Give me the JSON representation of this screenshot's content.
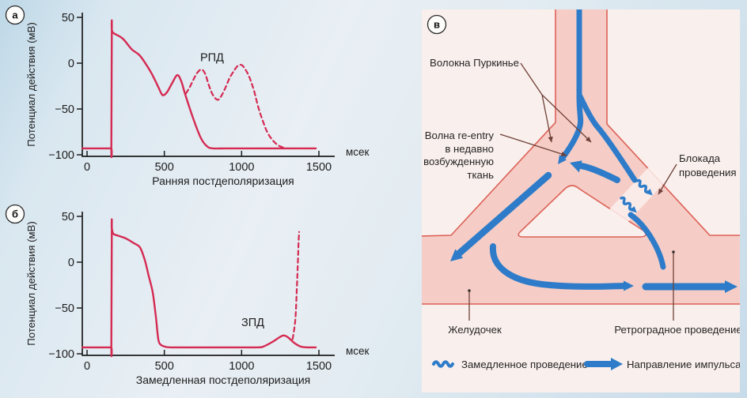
{
  "colors": {
    "curve_red": "#d52a52",
    "axis_ink": "#1c1c1c",
    "impulse_blue": "#2e7cc9",
    "tissue_pink": "#f6cdc6",
    "tissue_edge": "#dc6157",
    "panel_bg": "#f9efec",
    "pointer_brown": "#6f4038",
    "ink": "#262626"
  },
  "chart_data": [
    {
      "type": "line",
      "panel_letter": "а",
      "title": "Ранняя постдеполяризация",
      "ylabel": "Потенциал действия (мВ)",
      "x_unit": "мсек",
      "xlim": [
        0,
        1500
      ],
      "ylim": [
        -100,
        50
      ],
      "x_ticks": [
        0,
        500,
        1000,
        1500
      ],
      "y_ticks": [
        50,
        0,
        -50,
        -100
      ],
      "grid": false,
      "annotation": {
        "text": "РПД",
        "t": 732,
        "v": 2
      },
      "series": [
        {
          "name": "action-potential",
          "style": "solid",
          "points": [
            [
              -30,
              -93
            ],
            [
              60,
              -93
            ],
            [
              120,
              -93
            ],
            [
              157,
              -93
            ],
            [
              157,
              -93
            ],
            [
              160,
              37
            ],
            [
              160,
              37
            ],
            [
              170,
              33
            ],
            [
              230,
              27
            ],
            [
              290,
              15
            ],
            [
              343,
              8
            ],
            [
              410,
              -9
            ],
            [
              461,
              -26
            ],
            [
              480,
              -33
            ],
            [
              495,
              -35
            ],
            [
              520,
              -31
            ],
            [
              550,
              -22
            ],
            [
              584,
              -13
            ],
            [
              610,
              -20
            ],
            [
              635,
              -34
            ],
            [
              686,
              -60
            ],
            [
              737,
              -82
            ],
            [
              778,
              -91
            ],
            [
              815,
              -93
            ],
            [
              900,
              -93
            ],
            [
              1050,
              -93
            ],
            [
              1200,
              -93
            ],
            [
              1350,
              -93
            ],
            [
              1480,
              -93
            ]
          ]
        },
        {
          "name": "early-afterdepolarization",
          "style": "dashed",
          "points": [
            [
              640,
              -33
            ],
            [
              662,
              -27
            ],
            [
              688,
              -18
            ],
            [
              715,
              -10
            ],
            [
              742,
              -7
            ],
            [
              765,
              -12
            ],
            [
              790,
              -25
            ],
            [
              815,
              -35
            ],
            [
              845,
              -40
            ],
            [
              868,
              -36
            ],
            [
              895,
              -27
            ],
            [
              920,
              -17
            ],
            [
              948,
              -9
            ],
            [
              975,
              -3
            ],
            [
              1000,
              -2
            ],
            [
              1025,
              -7
            ],
            [
              1052,
              -16
            ],
            [
              1080,
              -30
            ],
            [
              1108,
              -48
            ],
            [
              1135,
              -62
            ],
            [
              1165,
              -75
            ],
            [
              1200,
              -84
            ],
            [
              1240,
              -90
            ],
            [
              1285,
              -93
            ]
          ]
        }
      ]
    },
    {
      "type": "line",
      "panel_letter": "б",
      "title": "Замедленная постдеполяризация",
      "ylabel": "Потенциал действия (мВ)",
      "x_unit": "мсек",
      "xlim": [
        0,
        1500
      ],
      "ylim": [
        -100,
        50
      ],
      "x_ticks": [
        0,
        500,
        1000,
        1500
      ],
      "y_ticks": [
        50,
        0,
        -50,
        -100
      ],
      "grid": false,
      "annotation": {
        "text": "ЗПД",
        "t": 998,
        "v": -70
      },
      "series": [
        {
          "name": "action-potential",
          "style": "solid",
          "points": [
            [
              -30,
              -93
            ],
            [
              60,
              -93
            ],
            [
              120,
              -93
            ],
            [
              157,
              -93
            ],
            [
              157,
              -93
            ],
            [
              160,
              37
            ],
            [
              160,
              37
            ],
            [
              170,
              31
            ],
            [
              200,
              29
            ],
            [
              250,
              26
            ],
            [
              300,
              21
            ],
            [
              343,
              16
            ],
            [
              374,
              2
            ],
            [
              399,
              -15
            ],
            [
              425,
              -33
            ],
            [
              445,
              -59
            ],
            [
              461,
              -84
            ],
            [
              476,
              -90
            ],
            [
              500,
              -92
            ],
            [
              540,
              -93
            ],
            [
              700,
              -93
            ],
            [
              900,
              -93
            ],
            [
              1100,
              -93
            ],
            [
              1142,
              -92
            ],
            [
              1200,
              -87
            ],
            [
              1245,
              -82
            ],
            [
              1272,
              -80
            ],
            [
              1300,
              -82
            ],
            [
              1340,
              -88
            ],
            [
              1380,
              -92
            ],
            [
              1423,
              -93
            ],
            [
              1480,
              -93
            ]
          ]
        },
        {
          "name": "delayed-afterdepolarization",
          "style": "dashed",
          "points": [
            [
              1330,
              -84
            ],
            [
              1348,
              -62
            ],
            [
              1358,
              -25
            ],
            [
              1364,
              0
            ],
            [
              1368,
              20
            ],
            [
              1372,
              33
            ]
          ]
        }
      ]
    }
  ],
  "diagram": {
    "panel_letter": "в",
    "labels": {
      "purkinje": "Волокна Пуркинье",
      "reentry_lines": [
        "Волна re-entry",
        "в недавно",
        "возбужденную",
        "ткань"
      ],
      "block_lines": [
        "Блокада",
        "проведения"
      ],
      "ventricle": "Желудочек",
      "retrograde": "Ретроградное проведение"
    },
    "legend": [
      {
        "icon": "squiggle-icon",
        "label": "Замедленное проведение"
      },
      {
        "icon": "arrow-icon",
        "label": "Направление импульса"
      }
    ]
  }
}
